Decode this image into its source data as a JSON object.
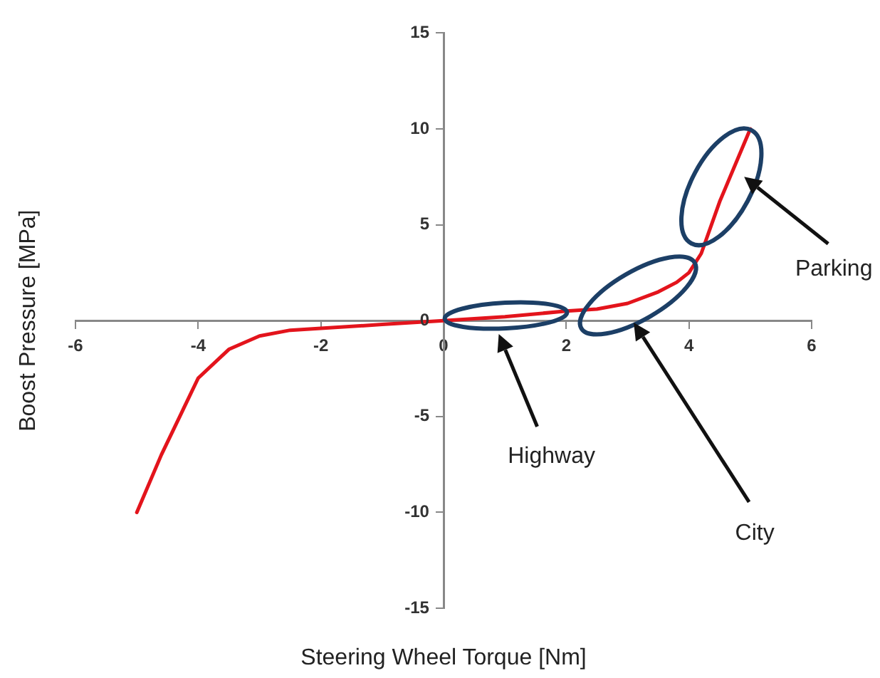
{
  "chart_data": {
    "type": "line",
    "xlabel": "Steering Wheel Torque [Nm]",
    "ylabel": "Boost Pressure [MPa]",
    "x": [
      -5,
      -4.6,
      -4.3,
      -4,
      -3.5,
      -3,
      -2.5,
      -2,
      -1,
      0,
      1,
      2,
      2.5,
      3,
      3.5,
      3.8,
      4,
      4.2,
      4.5,
      5
    ],
    "series": [
      {
        "color": "#e3141c",
        "values": [
          -10,
          -7,
          -5,
          -3,
          -1.5,
          -0.8,
          -0.5,
          -0.4,
          -0.2,
          0,
          0.2,
          0.5,
          0.6,
          0.9,
          1.5,
          2,
          2.5,
          3.5,
          6.2,
          10
        ]
      }
    ],
    "xlim": [
      -6,
      6
    ],
    "xticks": [
      -6,
      -4,
      -2,
      0,
      2,
      4,
      6
    ],
    "ylim": [
      -15,
      15
    ],
    "yticks": [
      -15,
      -10,
      -5,
      0,
      5,
      10,
      15
    ],
    "grid": false,
    "legend": false,
    "marker": "none",
    "line_style": "solid",
    "annotations": [
      "Highway",
      "City",
      "Parking"
    ]
  }
}
